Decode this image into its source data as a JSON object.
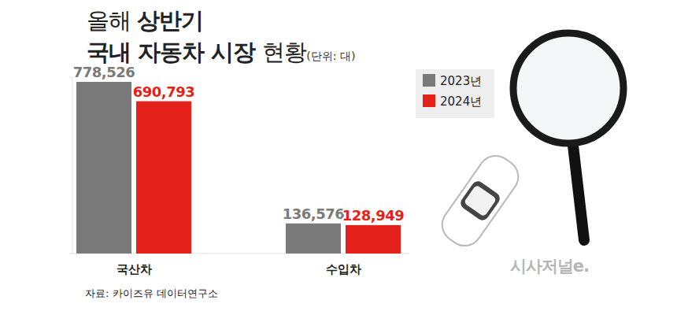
{
  "chart_data": {
    "type": "bar",
    "title": "올해 상반기 국내 자동차 시장 현황",
    "unit_label": "(단위: 대)",
    "source": "자료: 카이즈유 데이터연구소",
    "watermark": "시사저널e.",
    "categories": [
      "국산차",
      "수입차"
    ],
    "series": [
      {
        "name": "2023년",
        "color": "#7a7a7a",
        "values": [
          778526,
          136576
        ],
        "value_labels": [
          "778,526",
          "136,576"
        ]
      },
      {
        "name": "2024년",
        "color": "#e5211c",
        "values": [
          690793,
          128949
        ],
        "value_labels": [
          "690,793",
          "128,949"
        ]
      }
    ],
    "ylim": [
      0,
      800000
    ],
    "yticks": [
      0,
      800000
    ],
    "tick_labels": false,
    "grid": false,
    "data_labels": true,
    "legend": "upper right"
  }
}
